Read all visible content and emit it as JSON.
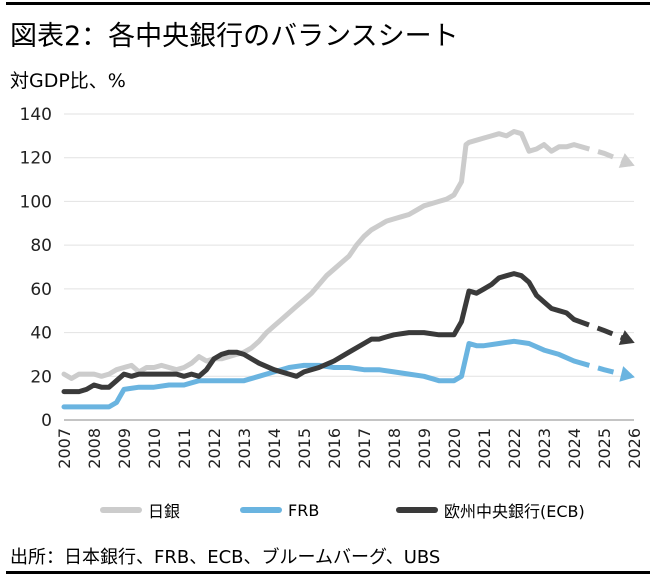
{
  "title": "図表2：各中央銀行のバランスシート",
  "unit_label": "対GDP比、%",
  "source": "出所：日本銀行、FRB、ECB、ブルームバーグ、UBS",
  "chart_data": {
    "type": "line",
    "title": "図表2：各中央銀行のバランスシート",
    "ylabel": "対GDP比、%",
    "xlabel": "",
    "xlim": [
      2007,
      2026
    ],
    "ylim": [
      0,
      140
    ],
    "y_ticks": [
      0,
      20,
      40,
      60,
      80,
      100,
      120,
      140
    ],
    "x_ticks": [
      "2007",
      "2008",
      "2009",
      "2010",
      "2011",
      "2012",
      "2013",
      "2014",
      "2015",
      "2016",
      "2017",
      "2018",
      "2019",
      "2020",
      "2021",
      "2022",
      "2023",
      "2024",
      "2025",
      "2026"
    ],
    "grid": "horizontal",
    "legend_position": "bottom",
    "series": [
      {
        "name": "日銀",
        "color": "#cccccc",
        "actual": [
          [
            2007.0,
            21
          ],
          [
            2007.25,
            19
          ],
          [
            2007.5,
            21
          ],
          [
            2007.75,
            21
          ],
          [
            2008.0,
            21
          ],
          [
            2008.25,
            20
          ],
          [
            2008.5,
            21
          ],
          [
            2008.75,
            23
          ],
          [
            2009.0,
            24
          ],
          [
            2009.25,
            25
          ],
          [
            2009.5,
            22
          ],
          [
            2009.75,
            24
          ],
          [
            2010.0,
            24
          ],
          [
            2010.25,
            25
          ],
          [
            2010.5,
            24
          ],
          [
            2010.75,
            23
          ],
          [
            2011.0,
            24
          ],
          [
            2011.25,
            26
          ],
          [
            2011.5,
            29
          ],
          [
            2011.75,
            27
          ],
          [
            2012.0,
            28
          ],
          [
            2012.25,
            28
          ],
          [
            2012.5,
            29
          ],
          [
            2012.75,
            30
          ],
          [
            2013.0,
            31
          ],
          [
            2013.25,
            33
          ],
          [
            2013.5,
            36
          ],
          [
            2013.75,
            40
          ],
          [
            2014.0,
            43
          ],
          [
            2014.25,
            46
          ],
          [
            2014.5,
            49
          ],
          [
            2014.75,
            52
          ],
          [
            2015.0,
            55
          ],
          [
            2015.25,
            58
          ],
          [
            2015.5,
            62
          ],
          [
            2015.75,
            66
          ],
          [
            2016.0,
            69
          ],
          [
            2016.25,
            72
          ],
          [
            2016.5,
            75
          ],
          [
            2016.75,
            80
          ],
          [
            2017.0,
            84
          ],
          [
            2017.25,
            87
          ],
          [
            2017.5,
            89
          ],
          [
            2017.75,
            91
          ],
          [
            2018.0,
            92
          ],
          [
            2018.25,
            93
          ],
          [
            2018.5,
            94
          ],
          [
            2018.75,
            96
          ],
          [
            2019.0,
            98
          ],
          [
            2019.25,
            99
          ],
          [
            2019.5,
            100
          ],
          [
            2019.75,
            101
          ],
          [
            2020.0,
            103
          ],
          [
            2020.25,
            109
          ],
          [
            2020.4,
            126
          ],
          [
            2020.5,
            127
          ],
          [
            2020.75,
            128
          ],
          [
            2021.0,
            129
          ],
          [
            2021.25,
            130
          ],
          [
            2021.5,
            131
          ],
          [
            2021.75,
            130
          ],
          [
            2022.0,
            132
          ],
          [
            2022.25,
            131
          ],
          [
            2022.5,
            123
          ],
          [
            2022.75,
            124
          ],
          [
            2023.0,
            126
          ],
          [
            2023.25,
            123
          ],
          [
            2023.5,
            125
          ],
          [
            2023.75,
            125
          ],
          [
            2024.0,
            126
          ]
        ],
        "projection": [
          [
            2024.0,
            126
          ],
          [
            2025.0,
            122
          ],
          [
            2025.9,
            117
          ]
        ]
      },
      {
        "name": "FRB",
        "color": "#6ab4e0",
        "actual": [
          [
            2007.0,
            6
          ],
          [
            2007.5,
            6
          ],
          [
            2008.0,
            6
          ],
          [
            2008.5,
            6
          ],
          [
            2008.75,
            8
          ],
          [
            2009.0,
            14
          ],
          [
            2009.5,
            15
          ],
          [
            2010.0,
            15
          ],
          [
            2010.5,
            16
          ],
          [
            2011.0,
            16
          ],
          [
            2011.5,
            18
          ],
          [
            2012.0,
            18
          ],
          [
            2012.5,
            18
          ],
          [
            2013.0,
            18
          ],
          [
            2013.5,
            20
          ],
          [
            2014.0,
            22
          ],
          [
            2014.5,
            24
          ],
          [
            2015.0,
            25
          ],
          [
            2015.5,
            25
          ],
          [
            2016.0,
            24
          ],
          [
            2016.5,
            24
          ],
          [
            2017.0,
            23
          ],
          [
            2017.5,
            23
          ],
          [
            2018.0,
            22
          ],
          [
            2018.5,
            21
          ],
          [
            2019.0,
            20
          ],
          [
            2019.5,
            18
          ],
          [
            2020.0,
            18
          ],
          [
            2020.25,
            20
          ],
          [
            2020.5,
            35
          ],
          [
            2020.75,
            34
          ],
          [
            2021.0,
            34
          ],
          [
            2021.5,
            35
          ],
          [
            2022.0,
            36
          ],
          [
            2022.5,
            35
          ],
          [
            2023.0,
            32
          ],
          [
            2023.5,
            30
          ],
          [
            2024.0,
            27
          ]
        ],
        "projection": [
          [
            2024.0,
            27
          ],
          [
            2025.0,
            23
          ],
          [
            2025.9,
            20
          ]
        ]
      },
      {
        "name": "欧州中央銀行(ECB)",
        "color": "#3a3a3a",
        "actual": [
          [
            2007.0,
            13
          ],
          [
            2007.25,
            13
          ],
          [
            2007.5,
            13
          ],
          [
            2007.75,
            14
          ],
          [
            2008.0,
            16
          ],
          [
            2008.25,
            15
          ],
          [
            2008.5,
            15
          ],
          [
            2008.75,
            18
          ],
          [
            2009.0,
            21
          ],
          [
            2009.25,
            20
          ],
          [
            2009.5,
            21
          ],
          [
            2009.75,
            21
          ],
          [
            2010.0,
            21
          ],
          [
            2010.25,
            21
          ],
          [
            2010.5,
            21
          ],
          [
            2010.75,
            21
          ],
          [
            2011.0,
            20
          ],
          [
            2011.25,
            21
          ],
          [
            2011.5,
            20
          ],
          [
            2011.75,
            23
          ],
          [
            2012.0,
            28
          ],
          [
            2012.25,
            30
          ],
          [
            2012.5,
            31
          ],
          [
            2012.75,
            31
          ],
          [
            2013.0,
            30
          ],
          [
            2013.5,
            26
          ],
          [
            2014.0,
            23
          ],
          [
            2014.5,
            21
          ],
          [
            2014.75,
            20
          ],
          [
            2015.0,
            22
          ],
          [
            2015.5,
            24
          ],
          [
            2016.0,
            27
          ],
          [
            2016.5,
            31
          ],
          [
            2017.0,
            35
          ],
          [
            2017.25,
            37
          ],
          [
            2017.5,
            37
          ],
          [
            2017.75,
            38
          ],
          [
            2018.0,
            39
          ],
          [
            2018.5,
            40
          ],
          [
            2019.0,
            40
          ],
          [
            2019.5,
            39
          ],
          [
            2020.0,
            39
          ],
          [
            2020.25,
            45
          ],
          [
            2020.5,
            59
          ],
          [
            2020.75,
            58
          ],
          [
            2021.0,
            60
          ],
          [
            2021.25,
            62
          ],
          [
            2021.5,
            65
          ],
          [
            2021.75,
            66
          ],
          [
            2022.0,
            67
          ],
          [
            2022.25,
            66
          ],
          [
            2022.5,
            63
          ],
          [
            2022.75,
            57
          ],
          [
            2023.0,
            54
          ],
          [
            2023.25,
            51
          ],
          [
            2023.5,
            50
          ],
          [
            2023.75,
            49
          ],
          [
            2024.0,
            46
          ]
        ],
        "projection": [
          [
            2024.0,
            46
          ],
          [
            2025.0,
            41
          ],
          [
            2025.9,
            36
          ]
        ]
      }
    ]
  },
  "legend": [
    {
      "label": "日銀",
      "color": "#cccccc"
    },
    {
      "label": "FRB",
      "color": "#6ab4e0"
    },
    {
      "label": "欧州中央銀行(ECB)",
      "color": "#3a3a3a"
    }
  ]
}
